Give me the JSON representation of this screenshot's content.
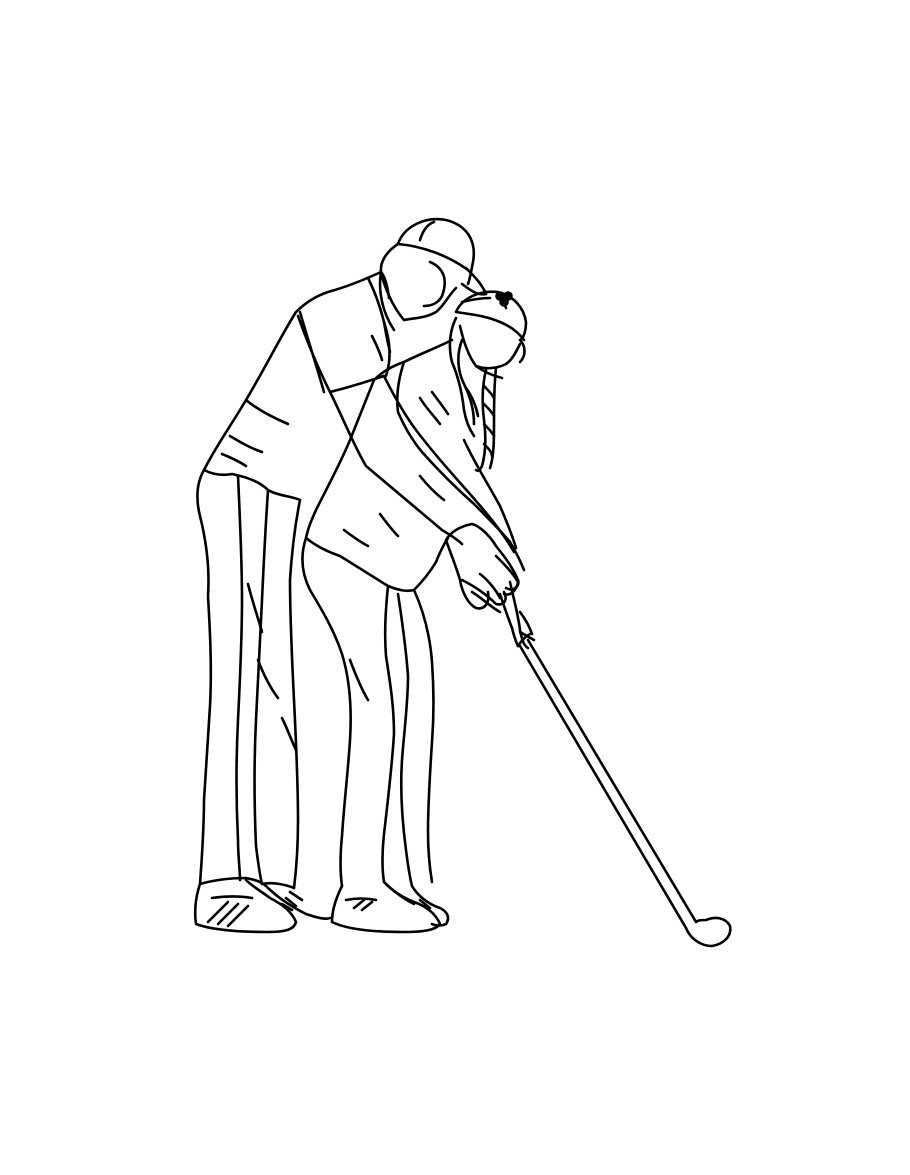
{
  "illustration": {
    "style": "black line art on white",
    "colors": {
      "background": "#ffffff",
      "stroke": "#000000"
    },
    "figures": {
      "adult": {
        "parts": [
          "baseball-cap",
          "head",
          "short-sleeve-polo",
          "arm",
          "gloved-hand",
          "trousers",
          "shoes-with-stripes"
        ]
      },
      "child": {
        "parts": [
          "cap-with-clover-logo",
          "braided-hair",
          "polo-shirt",
          "arms",
          "hands-on-grip",
          "leggings",
          "sneakers"
        ]
      },
      "golf_club": {
        "parts": [
          "shaft",
          "club-head"
        ]
      }
    }
  }
}
